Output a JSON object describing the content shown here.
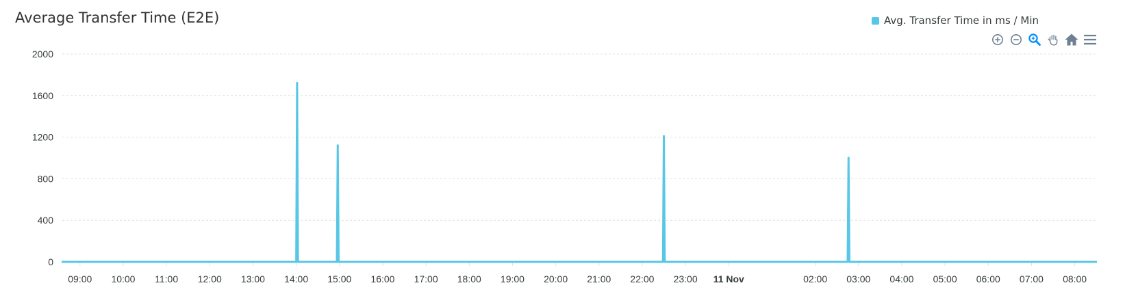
{
  "chart_data": {
    "type": "area",
    "title": "Average Transfer Time (E2E)",
    "legend": {
      "position": "top-right",
      "entries": [
        "Avg. Transfer Time in ms / Min"
      ]
    },
    "ylim": [
      0,
      2000
    ],
    "yticks": [
      0,
      400,
      800,
      1200,
      1600,
      2000
    ],
    "grid": true,
    "x_unit": "hour",
    "xlim": [
      8.7,
      32.65
    ],
    "xticks": [
      {
        "x": 9,
        "label": "09:00"
      },
      {
        "x": 10,
        "label": "10:00"
      },
      {
        "x": 11,
        "label": "11:00"
      },
      {
        "x": 12,
        "label": "12:00"
      },
      {
        "x": 13,
        "label": "13:00"
      },
      {
        "x": 14,
        "label": "14:00"
      },
      {
        "x": 15,
        "label": "15:00"
      },
      {
        "x": 16,
        "label": "16:00"
      },
      {
        "x": 17,
        "label": "17:00"
      },
      {
        "x": 18,
        "label": "18:00"
      },
      {
        "x": 19,
        "label": "19:00"
      },
      {
        "x": 20,
        "label": "20:00"
      },
      {
        "x": 21,
        "label": "21:00"
      },
      {
        "x": 22,
        "label": "22:00"
      },
      {
        "x": 23,
        "label": "23:00"
      },
      {
        "x": 24,
        "label": "11 Nov",
        "bold": true
      },
      {
        "x": 26,
        "label": "02:00"
      },
      {
        "x": 27,
        "label": "03:00"
      },
      {
        "x": 28,
        "label": "04:00"
      },
      {
        "x": 29,
        "label": "05:00"
      },
      {
        "x": 30,
        "label": "06:00"
      },
      {
        "x": 31,
        "label": "07:00"
      },
      {
        "x": 32,
        "label": "08:00"
      }
    ],
    "series": [
      {
        "name": "Avg. Transfer Time in ms / Min",
        "color": "#58c7e6",
        "points": [
          {
            "x": 8.7,
            "y": 0
          },
          {
            "x": 14.0,
            "y": 0
          },
          {
            "x": 14.02,
            "y": 1720
          },
          {
            "x": 14.04,
            "y": 0
          },
          {
            "x": 14.94,
            "y": 0
          },
          {
            "x": 14.96,
            "y": 1120
          },
          {
            "x": 14.98,
            "y": 0
          },
          {
            "x": 22.48,
            "y": 0
          },
          {
            "x": 22.5,
            "y": 1210
          },
          {
            "x": 22.52,
            "y": 0
          },
          {
            "x": 26.75,
            "y": 0
          },
          {
            "x": 26.77,
            "y": 1000
          },
          {
            "x": 26.79,
            "y": 0
          },
          {
            "x": 32.65,
            "y": 0
          }
        ]
      }
    ]
  },
  "toolbar": {
    "icons": [
      "zoom-in-icon",
      "zoom-out-icon",
      "selection-zoom-icon",
      "pan-icon",
      "reset-home-icon",
      "menu-icon"
    ],
    "active": "selection-zoom-icon",
    "icon_color": "#6e8192",
    "active_color": "#008ffb"
  }
}
